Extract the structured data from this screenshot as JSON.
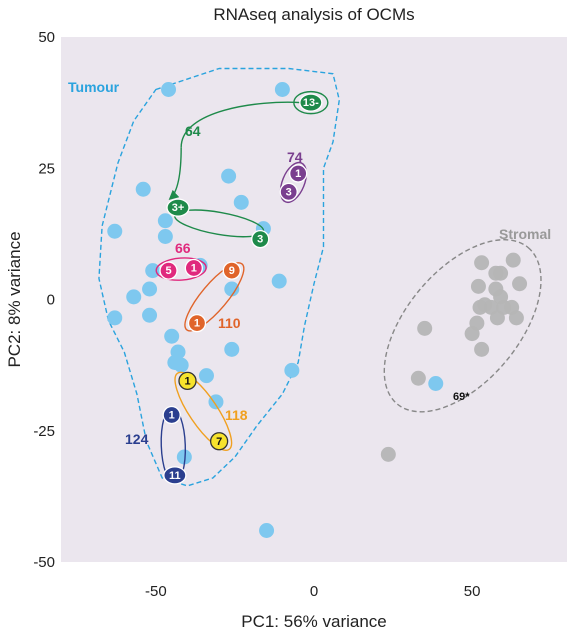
{
  "chart_data": {
    "type": "scatter",
    "title": "RNAseq analysis of OCMs",
    "xlabel": "PC1: 56% variance",
    "ylabel": "PC2: 8% variance",
    "xlim": [
      -80,
      80
    ],
    "ylim": [
      -50,
      50
    ],
    "xticks": [
      -50,
      0,
      50
    ],
    "yticks": [
      50,
      25,
      0,
      -25,
      -50
    ],
    "grid": false,
    "background": "#ebe6ee",
    "colors": {
      "tumour": "#7ec8ef",
      "stromal": "#b5b5b5",
      "tumour_group": "#2aa3de",
      "stromal_group": "#888888",
      "s64": "#1e8a4a",
      "s74": "#7a3f8f",
      "s66": "#e0297d",
      "s110": "#e0642a",
      "s118": "#f0a020",
      "s124": "#2b3f8f"
    },
    "groups": [
      {
        "name": "Tumour",
        "color": "#2aa3de"
      },
      {
        "name": "Stromal",
        "color": "#999999"
      }
    ],
    "tumour_points": [
      [
        -46,
        40
      ],
      [
        -10,
        40
      ],
      [
        -54,
        21
      ],
      [
        -47,
        15
      ],
      [
        -47,
        12
      ],
      [
        -63,
        13
      ],
      [
        -27,
        23.5
      ],
      [
        -23,
        18.5
      ],
      [
        -16,
        13.5
      ],
      [
        -11,
        3.5
      ],
      [
        -51,
        5.5
      ],
      [
        -36,
        6.5
      ],
      [
        -52,
        2
      ],
      [
        -57,
        0.5
      ],
      [
        -52,
        -3
      ],
      [
        -63,
        -3.5
      ],
      [
        -45,
        -7
      ],
      [
        -43,
        -10
      ],
      [
        -44,
        -12
      ],
      [
        -42,
        -12.5
      ],
      [
        -26,
        -9.5
      ],
      [
        -7,
        -13.5
      ],
      [
        -34,
        -14.5
      ],
      [
        -31,
        -19.5
      ],
      [
        -41,
        -30
      ],
      [
        -15,
        -44
      ],
      [
        -26,
        2
      ],
      [
        38.5,
        -16
      ]
    ],
    "stromal_points": [
      [
        53,
        7
      ],
      [
        59,
        5
      ],
      [
        57.5,
        5
      ],
      [
        63,
        7.5
      ],
      [
        52,
        2.5
      ],
      [
        57.5,
        2
      ],
      [
        59,
        0.5
      ],
      [
        65,
        3
      ],
      [
        54,
        -1
      ],
      [
        52.5,
        -1.5
      ],
      [
        56,
        -1.5
      ],
      [
        60,
        -1.5
      ],
      [
        62.5,
        -1.5
      ],
      [
        51.5,
        -4.5
      ],
      [
        58,
        -3.5
      ],
      [
        64,
        -3.5
      ],
      [
        50,
        -6.5
      ],
      [
        35,
        -5.5
      ],
      [
        53,
        -9.5
      ],
      [
        33,
        -15
      ],
      [
        23.5,
        -29.5
      ]
    ],
    "patients": [
      {
        "id": "64",
        "color": "#1e8a4a",
        "samples": [
          {
            "label": "13-",
            "x": -1,
            "y": 37.5
          },
          {
            "label": "3+",
            "x": -43,
            "y": 17.5
          },
          {
            "label": "3",
            "x": -17,
            "y": 11.5
          }
        ]
      },
      {
        "id": "74",
        "color": "#7a3f8f",
        "samples": [
          {
            "label": "1",
            "x": -5,
            "y": 24
          },
          {
            "label": "3",
            "x": -8,
            "y": 20.5
          }
        ]
      },
      {
        "id": "66",
        "color": "#e0297d",
        "samples": [
          {
            "label": "5",
            "x": -46,
            "y": 5.5
          },
          {
            "label": "1",
            "x": -38,
            "y": 6
          }
        ]
      },
      {
        "id": "110",
        "color": "#e0642a",
        "samples": [
          {
            "label": "9",
            "x": -26,
            "y": 5.5
          },
          {
            "label": "1",
            "x": -37,
            "y": -4.5
          }
        ]
      },
      {
        "id": "118",
        "color": "#f0a020",
        "samples": [
          {
            "label": "1",
            "x": -40,
            "y": -15.5
          },
          {
            "label": "7",
            "x": -30,
            "y": -27
          }
        ]
      },
      {
        "id": "124",
        "color": "#2b3f8f",
        "samples": [
          {
            "label": "1",
            "x": -45,
            "y": -22
          },
          {
            "label": "11",
            "x": -44,
            "y": -33.5
          }
        ]
      }
    ],
    "annotations": [
      {
        "text": "69*"
      }
    ]
  }
}
